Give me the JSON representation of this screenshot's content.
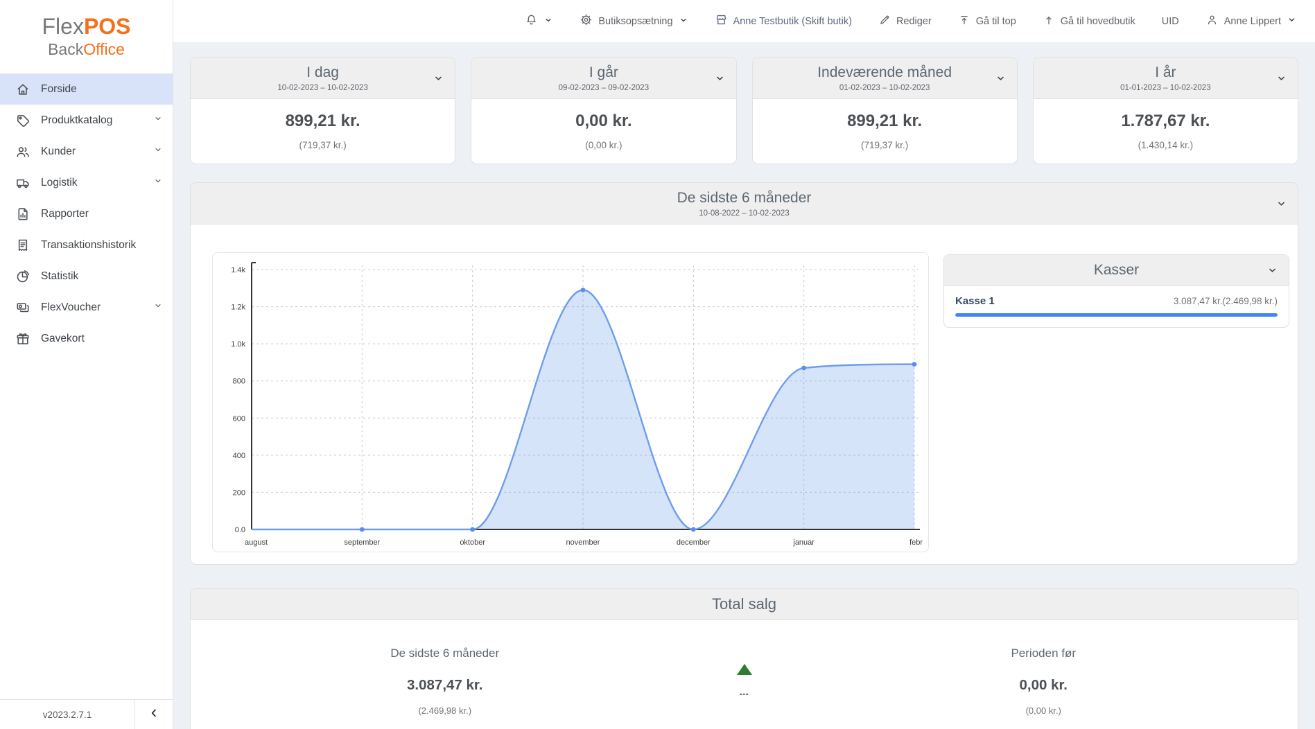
{
  "app": {
    "logo_flex": "Flex",
    "logo_pos": "POS",
    "logo_back": "Back",
    "logo_office": "Office",
    "version": "v2023.2.7.1"
  },
  "colors": {
    "accent_orange": "#f4701d",
    "active_item_bg": "#d8e2f8",
    "progress_blue": "#4285f4",
    "trend_green": "#2e7d32",
    "chart_line": "#6d9eeb"
  },
  "sidebar": {
    "items": [
      {
        "label": "Forside",
        "icon": "home",
        "active": true,
        "expandable": false
      },
      {
        "label": "Produktkatalog",
        "icon": "tag",
        "active": false,
        "expandable": true
      },
      {
        "label": "Kunder",
        "icon": "people",
        "active": false,
        "expandable": true
      },
      {
        "label": "Logistik",
        "icon": "truck",
        "active": false,
        "expandable": true
      },
      {
        "label": "Rapporter",
        "icon": "report",
        "active": false,
        "expandable": false
      },
      {
        "label": "Transaktionshistorik",
        "icon": "receipt",
        "active": false,
        "expandable": false
      },
      {
        "label": "Statistik",
        "icon": "pie-chart",
        "active": false,
        "expandable": false
      },
      {
        "label": "FlexVoucher",
        "icon": "voucher",
        "active": false,
        "expandable": true
      },
      {
        "label": "Gavekort",
        "icon": "gift",
        "active": false,
        "expandable": false
      }
    ]
  },
  "topbar": {
    "butiksopsaetning": "Butiksopsætning",
    "store": "Anne Testbutik (Skift butik)",
    "rediger": "Rediger",
    "ga_til_top": "Gå til top",
    "ga_til_hovedbutik": "Gå til hovedbutik",
    "uid": "UID",
    "user": "Anne Lippert"
  },
  "cards": [
    {
      "title": "I dag",
      "range": "10-02-2023 – 10-02-2023",
      "value": "899,21 kr.",
      "sub": "(719,37 kr.)"
    },
    {
      "title": "I går",
      "range": "09-02-2023 – 09-02-2023",
      "value": "0,00 kr.",
      "sub": "(0,00 kr.)"
    },
    {
      "title": "Indeværende måned",
      "range": "01-02-2023 – 10-02-2023",
      "value": "899,21 kr.",
      "sub": "(719,37 kr.)"
    },
    {
      "title": "I år",
      "range": "01-01-2023 – 10-02-2023",
      "value": "1.787,67 kr.",
      "sub": "(1.430,14 kr.)"
    }
  ],
  "chart_card": {
    "title": "De sidste 6 måneder",
    "range": "10-08-2022 – 10-02-2023"
  },
  "chart_data": {
    "type": "area",
    "title": "De sidste 6 måneder",
    "categories": [
      "august",
      "september",
      "oktober",
      "november",
      "december",
      "januar",
      "febr"
    ],
    "values": [
      0,
      0,
      0,
      1290,
      0,
      870,
      890
    ],
    "ylim": [
      0,
      1400
    ],
    "y_ticks": [
      0,
      200,
      400,
      600,
      800,
      1000,
      1200,
      1400
    ],
    "y_tick_labels": [
      "0.0",
      "200",
      "400",
      "600",
      "800",
      "1.0k",
      "1.2k",
      "1.4k"
    ],
    "grid": "dashed",
    "legend": "none",
    "line_color": "#6d9eeb",
    "fill_color": "rgba(109,158,235,0.28)",
    "point_color": "#5b8def"
  },
  "kasser": {
    "title": "Kasser",
    "rows": [
      {
        "name": "Kasse 1",
        "value": "3.087,47 kr.(2.469,98 kr.)",
        "progress_pct": 100
      }
    ]
  },
  "total": {
    "title": "Total salg",
    "left_label": "De sidste 6 måneder",
    "left_value": "3.087,47 kr.",
    "left_sub": "(2.469,98 kr.)",
    "trend": "up",
    "trend_dashes": "---",
    "right_label": "Perioden før",
    "right_value": "0,00 kr.",
    "right_sub": "(0,00 kr.)"
  }
}
